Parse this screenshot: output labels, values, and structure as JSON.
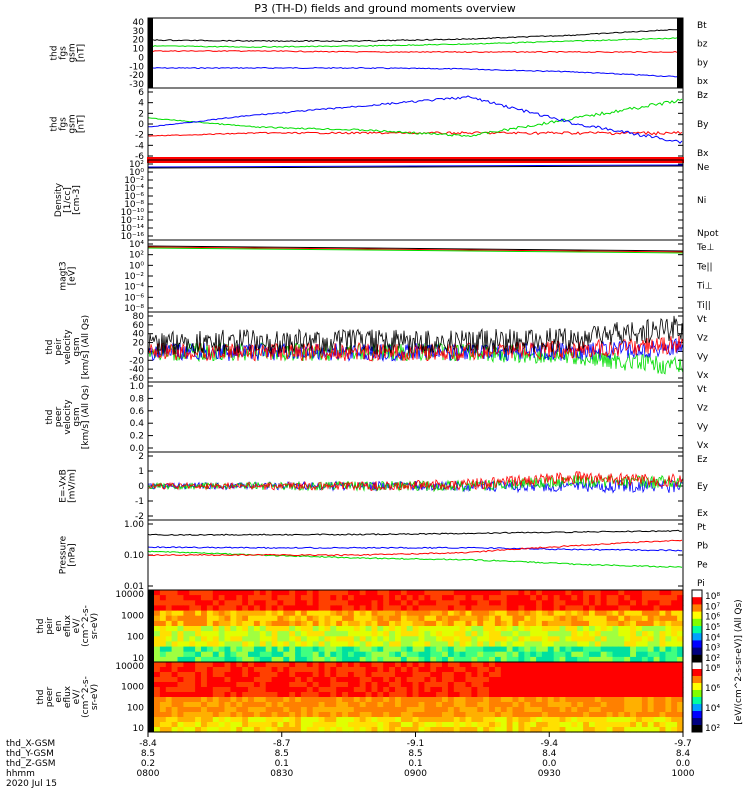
{
  "title": "P3 (TH-D) fields and ground moments overview",
  "date_label": "2020 Jul 15",
  "colors": {
    "black": "#000000",
    "red": "#ff0000",
    "green": "#00dd00",
    "blue": "#0000ff"
  },
  "panels": [
    {
      "id": "fgs",
      "ylabel": [
        "thd",
        "fgs",
        "gsm",
        "[nT]"
      ],
      "ticks": [
        "40",
        "30",
        "20",
        "10",
        "0",
        "-10",
        "-20",
        "-30"
      ],
      "legend": [
        {
          "text": "Bt",
          "color": "black"
        },
        {
          "text": "bz",
          "color": "red"
        },
        {
          "text": "by",
          "color": "green"
        },
        {
          "text": "bx",
          "color": "blue"
        }
      ]
    },
    {
      "id": "fgs_dsl",
      "ylabel": [
        "thd",
        "fgs",
        "gsm",
        "[nT]"
      ],
      "ticks": [
        "6",
        "4",
        "2",
        "0",
        "-2",
        "-4",
        "-6"
      ],
      "legend": [
        {
          "text": "Bz",
          "color": "red"
        },
        {
          "text": "By",
          "color": "green"
        },
        {
          "text": "Bx",
          "color": "blue"
        }
      ]
    },
    {
      "id": "density",
      "ylabel": [
        "Density",
        "[1/cc]",
        "[cm-3]"
      ],
      "ticks": [
        "10²",
        "10⁰",
        "10⁻²",
        "10⁻⁴",
        "10⁻⁶",
        "10⁻⁸",
        "10⁻¹⁰",
        "10⁻¹²",
        "10⁻¹⁴",
        "10⁻¹⁶"
      ],
      "legend": [
        {
          "text": "Ne",
          "color": "red"
        },
        {
          "text": "Ni",
          "color": "black"
        },
        {
          "text": "Npot",
          "color": "blue"
        }
      ]
    },
    {
      "id": "temp",
      "ylabel": [
        "magt3",
        "[eV]"
      ],
      "ticks": [
        "10⁴",
        "10²",
        "10⁰",
        "10⁻²",
        "10⁻⁴",
        "10⁻⁶",
        "10⁻⁸"
      ],
      "legend": [
        {
          "text": "Te⊥",
          "color": "red"
        },
        {
          "text": "Te||",
          "color": "black"
        },
        {
          "text": "Ti⊥",
          "color": "green"
        },
        {
          "text": "Ti||",
          "color": "green"
        }
      ]
    },
    {
      "id": "peir_vel",
      "ylabel": [
        "thd",
        "peir",
        "velocity",
        "gsm",
        "[km/s] (All Qs)"
      ],
      "ticks": [
        "80",
        "60",
        "40",
        "20",
        "0",
        "-20",
        "-40",
        "-60"
      ],
      "legend": [
        {
          "text": "Vt",
          "color": "black"
        },
        {
          "text": "Vz",
          "color": "red"
        },
        {
          "text": "Vy",
          "color": "green"
        },
        {
          "text": "Vx",
          "color": "blue"
        }
      ]
    },
    {
      "id": "peer_vel",
      "ylabel": [
        "thd",
        "peer",
        "velocity",
        "gsm",
        "[km/s] (All Qs)"
      ],
      "ticks": [
        "1.0",
        "0.8",
        "0.6",
        "0.4",
        "0.2",
        "0.0"
      ],
      "legend": [
        {
          "text": "Vt",
          "color": "black"
        },
        {
          "text": "Vz",
          "color": "red"
        },
        {
          "text": "Vy",
          "color": "green"
        },
        {
          "text": "Vx",
          "color": "blue"
        }
      ]
    },
    {
      "id": "efield",
      "ylabel": [
        "E=-VxB",
        "[mV/m]"
      ],
      "ticks": [
        "2",
        "1",
        "0",
        "-1",
        "-2"
      ],
      "legend": [
        {
          "text": "Ez",
          "color": "red"
        },
        {
          "text": "Ey",
          "color": "green"
        },
        {
          "text": "Ex",
          "color": "blue"
        }
      ]
    },
    {
      "id": "pressure",
      "ylabel": [
        "Pressure",
        "[nPa]"
      ],
      "ticks": [
        "1.00",
        "0.10",
        "0.01"
      ],
      "legend": [
        {
          "text": "Pt",
          "color": "black"
        },
        {
          "text": "Pb",
          "color": "red"
        },
        {
          "text": "Pe",
          "color": "green"
        },
        {
          "text": "Pi",
          "color": "blue"
        }
      ]
    },
    {
      "id": "peir_eflux",
      "ylabel": [
        "thd",
        "peir",
        "en",
        "eflux",
        "eV/",
        "(cm^2-s-",
        "sr-eV)"
      ],
      "ticks": [
        "10000",
        "1000",
        "100",
        "10"
      ],
      "colorbar": [
        "10⁸",
        "10⁷",
        "10⁶",
        "10⁵",
        "10⁴",
        "10³",
        "10²"
      ]
    },
    {
      "id": "peer_eflux",
      "ylabel": [
        "thd",
        "peer",
        "en",
        "eflux",
        "eV/",
        "(cm^2-s-",
        "sr-eV)"
      ],
      "ticks": [
        "10000",
        "1000",
        "100",
        "10"
      ],
      "colorbar": [
        "10⁸",
        "10⁶",
        "10⁴",
        "10²"
      ]
    }
  ],
  "colorbar_label": "[eV/(cm^2-s-sr-eV)] (All Qs)",
  "xaxis": {
    "row_labels": [
      "thd_X-GSM",
      "thd_Y-GSM",
      "thd_Z-GSM",
      "hhmm"
    ],
    "columns": [
      {
        "x": "-8.4",
        "y": "8.5",
        "z": "0.2",
        "hhmm": "0800"
      },
      {
        "x": "-8.7",
        "y": "8.5",
        "z": "0.1",
        "hhmm": "0830"
      },
      {
        "x": "-9.1",
        "y": "8.5",
        "z": "0.1",
        "hhmm": "0900"
      },
      {
        "x": "-9.4",
        "y": "8.4",
        "z": "0.0",
        "hhmm": "0930"
      },
      {
        "x": "-9.7",
        "y": "8.4",
        "z": "0.0",
        "hhmm": "1000"
      }
    ]
  },
  "chart_data": {
    "type": "line",
    "title": "P3 (TH-D) fields and ground moments overview",
    "x_time_range": [
      "0800",
      "1000"
    ],
    "series_approx": {
      "fgs_gsm": {
        "ylim": [
          -30,
          40
        ],
        "Bt": [
          18,
          17,
          17,
          19,
          23,
          29
        ],
        "bz": [
          7,
          7,
          6,
          6,
          6,
          6
        ],
        "by": [
          12,
          11,
          12,
          14,
          17,
          20
        ],
        "bx": [
          -10,
          -10,
          -10,
          -11,
          -14,
          -19
        ]
      },
      "fgs_dsl": {
        "ylim": [
          -6,
          6
        ],
        "Bz": [
          -2,
          -1.5,
          -1.5,
          -1.5,
          -1.5,
          -1.5
        ],
        "By": [
          1,
          -0.5,
          -1,
          -2,
          1,
          4
        ],
        "Bx": [
          -0.5,
          1.5,
          3,
          4.5,
          0,
          -3
        ]
      },
      "velocity_peir": {
        "ylim": [
          -60,
          80
        ],
        "Vt": [
          20,
          20,
          20,
          20,
          25,
          50
        ],
        "Vz": [
          0,
          0,
          0,
          0,
          5,
          15
        ],
        "Vy": [
          0,
          0,
          0,
          0,
          -10,
          -30
        ],
        "Vx": [
          0,
          0,
          0,
          0,
          0,
          10
        ]
      },
      "efield": {
        "ylim": [
          -2,
          2
        ],
        "Ez": [
          0,
          0,
          0,
          0.1,
          0.5,
          0.3
        ],
        "Ey": [
          0,
          0,
          0,
          0,
          0.3,
          0.2
        ],
        "Ex": [
          0,
          0,
          0,
          0,
          0,
          0
        ]
      },
      "pressure": {
        "ylim_log": [
          0.01,
          1.0
        ],
        "Pt": [
          0.45,
          0.45,
          0.46,
          0.5,
          0.55,
          0.6
        ],
        "Pb": [
          0.1,
          0.1,
          0.1,
          0.12,
          0.2,
          0.3
        ],
        "Pe": [
          0.13,
          0.1,
          0.08,
          0.07,
          0.05,
          0.04
        ],
        "Pi": [
          0.18,
          0.17,
          0.17,
          0.17,
          0.15,
          0.14
        ]
      }
    }
  }
}
